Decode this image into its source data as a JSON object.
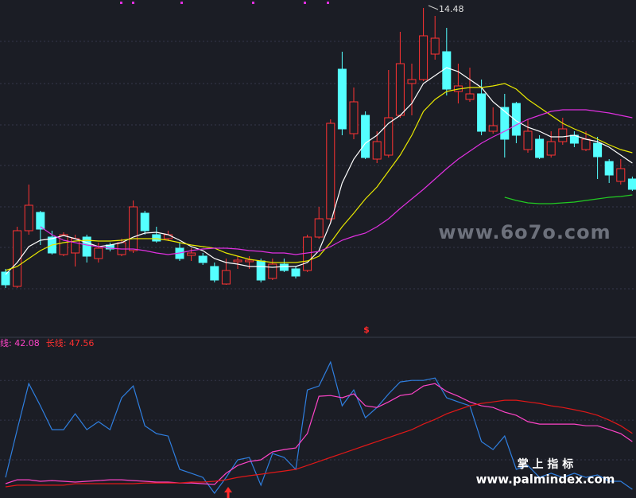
{
  "chart_data": [
    {
      "type": "candlestick",
      "open": [
        7.84,
        7.48,
        8.88,
        9.34,
        8.72,
        8.28,
        8.32,
        8.72,
        8.18,
        8.52,
        8.28,
        8.38,
        9.32,
        8.78,
        8.68,
        8.44,
        8.26,
        8.24,
        7.98,
        7.54,
        8.1,
        8.1,
        8.12,
        7.68,
        8.04,
        7.92,
        7.88,
        8.72,
        9.18,
        12.94,
        11.32,
        11.78,
        10.68,
        10.78,
        11.78,
        12.58,
        12.68,
        13.32,
        13.38,
        12.38,
        12.18,
        12.32,
        11.38,
        11.98,
        12.08,
        10.92,
        11.18,
        10.78,
        11.12,
        11.28,
        10.92,
        11.08,
        10.62,
        10.12,
        10.18
      ],
      "high": [
        7.92,
        8.98,
        10.04,
        9.38,
        8.88,
        8.84,
        8.78,
        8.78,
        8.58,
        8.58,
        8.68,
        9.64,
        9.38,
        8.98,
        8.88,
        8.58,
        8.44,
        8.32,
        8.08,
        8.18,
        8.24,
        8.24,
        8.18,
        8.18,
        8.18,
        7.98,
        8.78,
        9.48,
        11.68,
        13.38,
        12.48,
        11.88,
        11.38,
        12.92,
        13.88,
        13.08,
        14.48,
        14.28,
        13.98,
        13.08,
        12.98,
        12.68,
        11.98,
        12.32,
        12.12,
        11.68,
        11.28,
        11.38,
        11.72,
        11.38,
        11.38,
        11.24,
        10.68,
        10.68,
        10.24
      ],
      "low": [
        7.44,
        7.44,
        8.78,
        8.52,
        8.28,
        8.24,
        7.98,
        8.08,
        8.08,
        8.36,
        8.24,
        8.32,
        8.78,
        8.58,
        8.62,
        8.12,
        8.12,
        8.02,
        7.58,
        7.52,
        7.92,
        7.92,
        7.58,
        7.64,
        7.84,
        7.68,
        7.84,
        8.68,
        9.08,
        11.28,
        11.18,
        10.68,
        10.58,
        10.72,
        11.72,
        11.78,
        12.64,
        13.18,
        12.28,
        12.08,
        12.12,
        11.28,
        11.32,
        10.72,
        11.08,
        10.84,
        10.68,
        10.72,
        11.04,
        10.98,
        10.88,
        10.18,
        10.08,
        10.04,
        9.88
      ],
      "close": [
        7.52,
        8.88,
        9.52,
        8.92,
        8.32,
        8.78,
        8.68,
        8.24,
        8.44,
        8.42,
        8.58,
        9.48,
        8.88,
        8.62,
        8.78,
        8.18,
        8.32,
        8.08,
        7.64,
        7.88,
        8.14,
        8.14,
        7.64,
        8.04,
        7.88,
        7.74,
        8.72,
        9.18,
        11.58,
        11.44,
        12.12,
        10.72,
        11.12,
        11.72,
        13.08,
        12.68,
        13.78,
        13.72,
        12.44,
        12.52,
        12.32,
        11.38,
        11.52,
        11.18,
        11.28,
        11.38,
        10.72,
        11.12,
        11.44,
        11.08,
        11.18,
        10.74,
        10.28,
        10.44,
        9.92
      ],
      "up_color": "#ff3333",
      "down_color": "#54ffff",
      "ylim": [
        6.68,
        14.68
      ],
      "ygrid": [
        13.64,
        12.58,
        11.54,
        10.52,
        9.48,
        8.46,
        7.42
      ],
      "high_label": "14.48",
      "signal": "$",
      "series": [
        {
          "color": "#ffffff",
          "values": [
            7.78,
            8.08,
            8.48,
            8.64,
            8.68,
            8.76,
            8.68,
            8.58,
            8.48,
            8.52,
            8.58,
            8.72,
            8.82,
            8.84,
            8.78,
            8.64,
            8.48,
            8.38,
            8.18,
            8.08,
            8.04,
            7.98,
            7.98,
            7.96,
            7.98,
            7.98,
            8.08,
            8.38,
            9.08,
            10.08,
            10.68,
            11.08,
            11.28,
            11.58,
            11.78,
            12.08,
            12.58,
            12.78,
            12.98,
            12.88,
            12.68,
            12.48,
            12.12,
            11.88,
            11.64,
            11.48,
            11.38,
            11.24,
            11.24,
            11.28,
            11.18,
            11.12,
            10.98,
            10.78,
            10.58
          ]
        },
        {
          "color": "#e8e800",
          "values": [
            7.88,
            7.98,
            8.18,
            8.38,
            8.52,
            8.58,
            8.62,
            8.64,
            8.62,
            8.62,
            8.64,
            8.68,
            8.68,
            8.68,
            8.64,
            8.58,
            8.52,
            8.48,
            8.44,
            8.32,
            8.24,
            8.16,
            8.12,
            8.08,
            8.08,
            8.08,
            8.12,
            8.24,
            8.58,
            8.98,
            9.32,
            9.68,
            9.98,
            10.38,
            10.78,
            11.28,
            11.88,
            12.18,
            12.38,
            12.44,
            12.48,
            12.48,
            12.52,
            12.58,
            12.44,
            12.18,
            11.98,
            11.78,
            11.58,
            11.44,
            11.32,
            11.18,
            11.04,
            10.92,
            10.84
          ]
        },
        {
          "color": "#e030e0",
          "values": [
            null,
            null,
            null,
            8.98,
            8.78,
            8.64,
            8.58,
            8.52,
            8.48,
            8.44,
            8.42,
            8.42,
            8.38,
            8.32,
            8.28,
            8.32,
            8.38,
            8.42,
            8.44,
            8.44,
            8.42,
            8.38,
            8.36,
            8.32,
            8.32,
            8.28,
            8.32,
            8.36,
            8.48,
            8.64,
            8.74,
            8.82,
            8.98,
            9.18,
            9.44,
            9.68,
            9.92,
            10.18,
            10.44,
            10.68,
            10.88,
            11.08,
            11.24,
            11.38,
            11.54,
            11.68,
            11.78,
            11.88,
            11.92,
            11.92,
            11.92,
            11.88,
            11.84,
            11.78,
            11.72
          ]
        },
        {
          "color": "#22cc22",
          "values": [
            null,
            null,
            null,
            null,
            null,
            null,
            null,
            null,
            null,
            null,
            null,
            null,
            null,
            null,
            null,
            null,
            null,
            null,
            null,
            null,
            null,
            null,
            null,
            null,
            null,
            null,
            null,
            null,
            null,
            null,
            null,
            null,
            null,
            null,
            null,
            null,
            null,
            null,
            null,
            null,
            null,
            null,
            null,
            9.72,
            9.64,
            9.58,
            9.56,
            9.56,
            9.58,
            9.6,
            9.64,
            9.68,
            9.72,
            9.74,
            9.78
          ]
        }
      ]
    },
    {
      "type": "line",
      "ylim": [
        5,
        108
      ],
      "ygrid": [
        82.6,
        56.3,
        30.0
      ],
      "series": [
        {
          "color": "#2f7fe0",
          "values": [
            18.4,
            50.0,
            80.5,
            65.8,
            50.0,
            50.0,
            60.5,
            50.0,
            55.3,
            50.0,
            71.1,
            78.9,
            52.6,
            47.4,
            45.8,
            23.7,
            21.1,
            18.4,
            7.9,
            18.4,
            30.0,
            31.6,
            13.2,
            34.2,
            31.6,
            23.7,
            76.3,
            78.9,
            94.7,
            65.8,
            76.3,
            57.9,
            64.7,
            73.7,
            81.6,
            82.6,
            82.6,
            84.2,
            71.1,
            68.4,
            65.8,
            42.1,
            36.8,
            45.8,
            23.7,
            26.3,
            18.4,
            21.1,
            18.4,
            21.1,
            18.4,
            20.0,
            15.8,
            15.8,
            10.5
          ]
        },
        {
          "name": "线",
          "last_label": ": 42.08",
          "color": "#ff44c8",
          "values": [
            14.2,
            16.8,
            16.8,
            15.8,
            16.3,
            15.8,
            15.3,
            15.8,
            16.3,
            16.8,
            16.8,
            16.3,
            15.8,
            15.3,
            15.3,
            14.7,
            14.7,
            14.2,
            13.7,
            21.1,
            26.3,
            28.9,
            30.0,
            35.3,
            36.8,
            37.9,
            47.4,
            72.1,
            72.6,
            71.1,
            73.7,
            65.8,
            64.7,
            68.4,
            72.6,
            73.7,
            78.9,
            80.5,
            75.3,
            72.1,
            68.4,
            65.8,
            64.7,
            61.6,
            59.5,
            55.3,
            53.7,
            53.7,
            53.7,
            53.7,
            52.6,
            52.6,
            50.0,
            47.4,
            42.08
          ]
        },
        {
          "name": "长线",
          "last_label": ": 47.56",
          "color": "#e01818",
          "values": [
            12.1,
            13.2,
            13.2,
            13.2,
            13.2,
            13.2,
            14.2,
            14.2,
            14.2,
            14.2,
            14.2,
            14.2,
            14.7,
            14.7,
            14.7,
            14.7,
            15.3,
            15.3,
            15.8,
            16.8,
            18.4,
            19.5,
            20.5,
            21.6,
            22.6,
            23.7,
            26.3,
            28.9,
            31.6,
            34.2,
            36.8,
            39.5,
            42.1,
            44.7,
            47.4,
            50.0,
            53.7,
            56.8,
            60.5,
            63.2,
            65.8,
            67.4,
            68.4,
            69.5,
            69.5,
            68.4,
            67.4,
            65.8,
            64.7,
            63.2,
            61.6,
            59.5,
            56.3,
            52.6,
            47.56
          ]
        }
      ]
    }
  ],
  "watermarks": [
    "www.6o7o.com",
    "掌 上 指 标",
    "www.palmindex.com"
  ]
}
